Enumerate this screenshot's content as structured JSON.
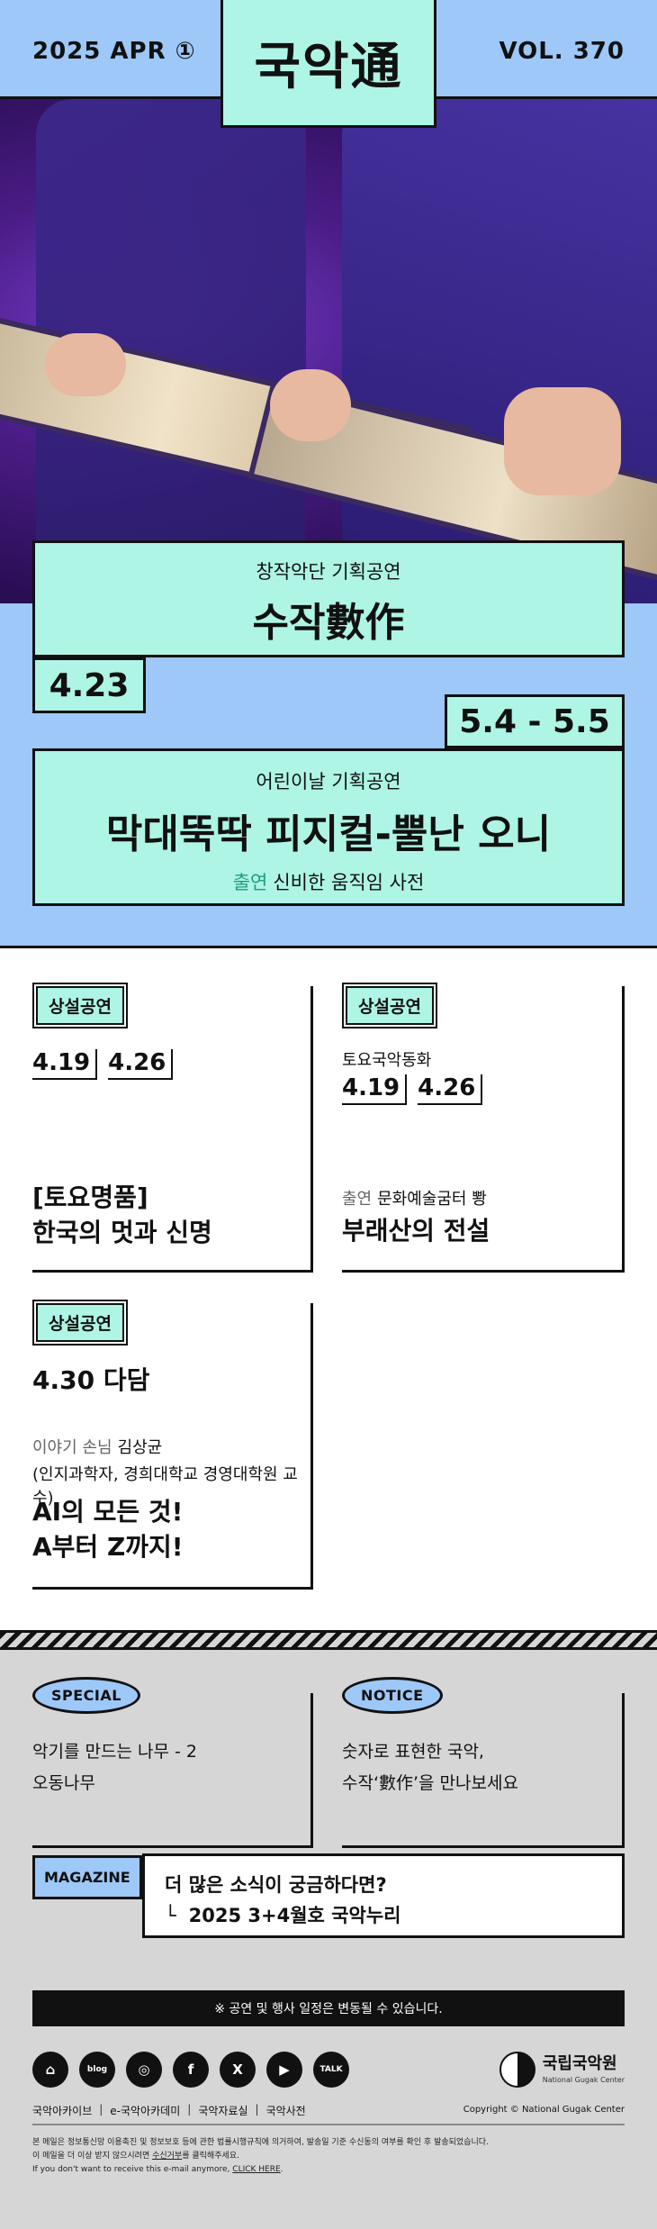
{
  "header": {
    "issue_date": "2025 APR ①",
    "logo": "국악通",
    "volume": "VOL. 370"
  },
  "hero": {
    "event1": {
      "subtitle": "창작악단 기획공연",
      "title": "수작數作",
      "date": "4.23"
    },
    "event2": {
      "date": "5.4 - 5.5",
      "subtitle": "어린이날 기획공연",
      "title": "막대뚝딱 피지컬-뿔난 오니",
      "cast_label": "출연",
      "cast": "신비한 움직임 사전"
    }
  },
  "cards": [
    {
      "tag": "상설공연",
      "dates": [
        "4.19",
        "4.26"
      ],
      "title_line1": "[토요명품]",
      "title_line2": "한국의 멋과 신명"
    },
    {
      "tag": "상설공연",
      "series": "토요국악동화",
      "dates": [
        "4.19",
        "4.26"
      ],
      "cast_label": "출연",
      "cast": "문화예술굼터 뽱",
      "title": "부래산의 전설"
    },
    {
      "tag": "상설공연",
      "heading": "4.30 다담",
      "guest_label": "이야기 손님",
      "guest": "김상균",
      "guest_affil": "(인지과학자, 경희대학교 경영대학원 교수)",
      "title_line1": "AI의 모든 것!",
      "title_line2": "A부터 Z까지!"
    }
  ],
  "special": {
    "label": "SPECIAL",
    "line1": "악기를 만드는 나무 - 2",
    "line2": "오동나무"
  },
  "notice": {
    "label": "NOTICE",
    "line1": "숫자로 표현한 국악,",
    "line2": "수작‘數作’을 만나보세요"
  },
  "magazine": {
    "label": "MAGAZINE",
    "line1": "더 많은 소식이 궁금하다면?",
    "arrow": "└",
    "line2": "2025 3+4월호 국악누리"
  },
  "notice_bar": "※ 공연 및 행사 일정은 변동될 수 있습니다.",
  "social": [
    {
      "name": "home-icon",
      "glyph": "⌂"
    },
    {
      "name": "blog-icon",
      "glyph": "blog"
    },
    {
      "name": "instagram-icon",
      "glyph": "◎"
    },
    {
      "name": "facebook-icon",
      "glyph": "f"
    },
    {
      "name": "x-icon",
      "glyph": "X"
    },
    {
      "name": "youtube-icon",
      "glyph": "▶"
    },
    {
      "name": "kakaotalk-icon",
      "glyph": "TALK"
    }
  ],
  "brand": {
    "name": "국립국악원",
    "english": "National Gugak Center"
  },
  "footer_links": [
    "국악아카이브",
    "e-국악아카데미",
    "국악자료실",
    "국악사전"
  ],
  "copyright": "Copyright © National Gugak Center",
  "fine_print": {
    "line1": "본 메일은 정보통신망 이용촉진 및 정보보호 등에 관한 법률시행규칙에 의거하여, 발송일 기준 수신동의 여부를 확인 후 발송되었습니다.",
    "line2_pre": "이 메일을 더 이상 받지 않으시려면 ",
    "line2_link": "수신거부",
    "line2_post": "를 클릭해주세요.",
    "line3_pre": "If you don't want to receive this e-mail anymore, ",
    "line3_link": "CLICK HERE",
    "line3_post": "."
  }
}
